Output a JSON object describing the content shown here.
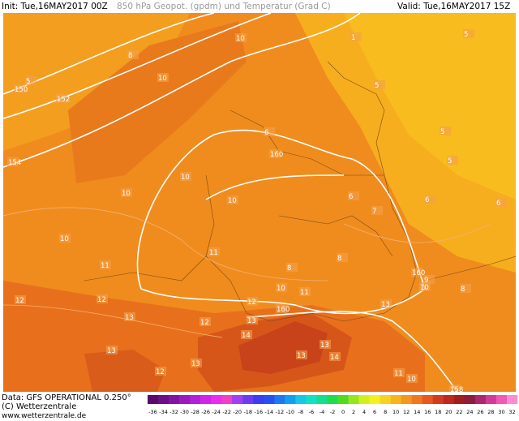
{
  "header": {
    "init": "Init: Tue,16MAY2017 00Z",
    "title": "850 hPa Geopot. (gpdm) und Temperatur (Grad C)",
    "valid": "Valid: Tue,16MAY2017 15Z"
  },
  "footer": {
    "data": "Data: GFS OPERATIONAL 0.250°",
    "copyright": "(C) Wetterzentrale",
    "url": "www.wetterzentrale.de"
  },
  "map_labels": [
    "10",
    "8",
    "10",
    "152",
    "150",
    "154",
    "10",
    "10",
    "160",
    "6",
    "10",
    "10",
    "11",
    "11",
    "12",
    "12",
    "13",
    "12",
    "13",
    "12",
    "13",
    "14",
    "13",
    "12",
    "160",
    "10",
    "11",
    "8",
    "8",
    "160",
    "10",
    "9",
    "8",
    "6",
    "7",
    "6",
    "6",
    "5",
    "5",
    "5",
    "1",
    "5",
    "13",
    "13",
    "13",
    "14",
    "11",
    "10",
    "158",
    "5"
  ],
  "colorbar": {
    "labels": [
      -36,
      -34,
      -32,
      -30,
      -28,
      -26,
      -24,
      -22,
      -20,
      -18,
      -16,
      -14,
      -12,
      -10,
      -8,
      -6,
      -4,
      -2,
      0,
      2,
      4,
      6,
      8,
      10,
      12,
      14,
      16,
      18,
      20,
      22,
      24,
      26,
      28,
      30,
      32
    ],
    "colors": [
      "#5a0a6a",
      "#6e0f86",
      "#8214a2",
      "#9a1ac0",
      "#b41fd8",
      "#d024e8",
      "#e82cf0",
      "#f040c8",
      "#a040f0",
      "#6e3cf0",
      "#3c3cf0",
      "#2850f0",
      "#1e78f0",
      "#14a0f0",
      "#14c8e6",
      "#14e0c8",
      "#14e08c",
      "#1edc50",
      "#50dc1e",
      "#96e61e",
      "#d2f01e",
      "#f5f01e",
      "#f8d21e",
      "#f8b41e",
      "#f5961e",
      "#f0781e",
      "#e65a1e",
      "#d23c1e",
      "#be281e",
      "#a01e1e",
      "#8c1e3c",
      "#aa286e",
      "#d23c96",
      "#f05ab4",
      "#ff8cd2"
    ]
  }
}
